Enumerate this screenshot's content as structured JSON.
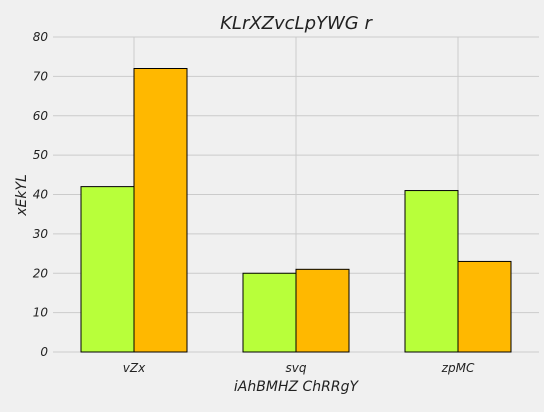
{
  "chart_data": {
    "type": "bar",
    "title": "KLrXZvcLpYWG r",
    "xlabel": "iAhBMHZ ChRRgY",
    "ylabel": "xEkYL",
    "categories": [
      "vZx",
      "svq",
      "zpMC"
    ],
    "series": [
      {
        "values": [
          42,
          20,
          41
        ],
        "color": "#b8ff3a"
      },
      {
        "values": [
          72,
          21,
          23
        ],
        "color": "#ffb800"
      }
    ],
    "ylim": [
      0,
      80
    ],
    "yticks": [
      0,
      10,
      20,
      30,
      40,
      50,
      60,
      70,
      80
    ],
    "grid": true,
    "legend": "none"
  }
}
